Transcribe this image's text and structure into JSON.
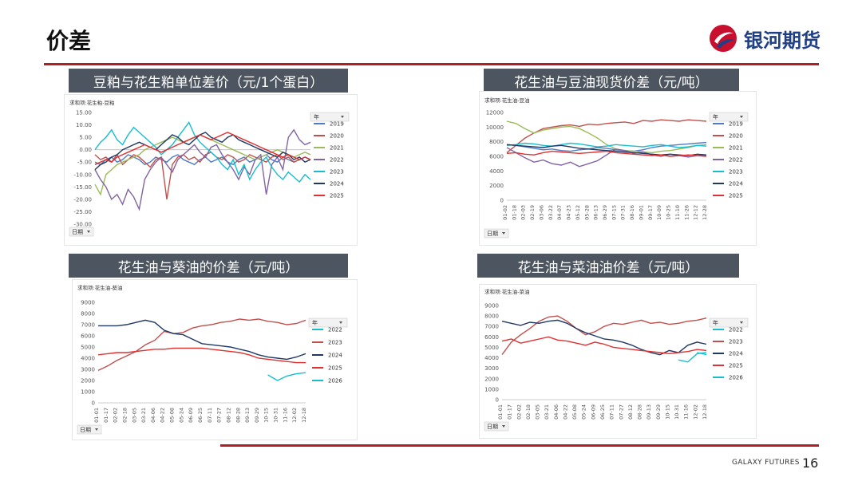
{
  "page": {
    "title": "价差",
    "brand_name": "银河期货",
    "footer_brand": "GALAXY FUTURES",
    "page_number": "16",
    "colors": {
      "accent": "#b01f24",
      "title_bar": "#4d5561",
      "brand_blue": "#1f3f86"
    }
  },
  "chart_data": [
    {
      "id": "c1",
      "type": "line",
      "panel_title": "豆粕与花生粕单位差价（元/1个蛋白）",
      "field_label": "求和项:花生粕-豆粕",
      "legend_title": "年",
      "axis_button": "日期",
      "y_ticks": [
        "15.00",
        "10.00",
        "5.00",
        "0.00",
        "-5.00",
        "-10.00",
        "-15.00",
        "-20.00",
        "-25.00",
        "-30.00"
      ],
      "ylim": [
        -30,
        15
      ],
      "x_ticks": [],
      "series": [
        {
          "name": "2019",
          "color": "#4e7ac7",
          "values": [
            -5,
            -6,
            -4,
            -3,
            -5,
            -4,
            -2,
            -3,
            -4,
            -6,
            -5,
            -3,
            -4,
            -5,
            -3,
            -2,
            -4,
            -5,
            -6,
            -4,
            -3,
            -5,
            -4,
            -3,
            -5,
            -6,
            -4,
            -3,
            -5,
            -4,
            -3,
            -2,
            -4,
            -5,
            -3,
            -4,
            -5,
            -4,
            -3,
            -4
          ]
        },
        {
          "name": "2020",
          "color": "#c0504d",
          "values": [
            -2,
            -4,
            -3,
            -5,
            -2,
            -6,
            -4,
            -2,
            -3,
            -5,
            -7,
            -4,
            -3,
            -20,
            -6,
            -3,
            -2,
            -4,
            -3,
            -5,
            -2,
            -1,
            -3,
            -4,
            -2,
            -3,
            -5,
            -4,
            -2,
            -3,
            -4,
            -5,
            -3,
            -2,
            -4,
            -3,
            -5,
            -4,
            -3,
            -4
          ]
        },
        {
          "name": "2021",
          "color": "#9bbb59",
          "values": [
            -14,
            -18,
            -10,
            -8,
            -6,
            -5,
            -4,
            -3,
            -2,
            0,
            1,
            2,
            3,
            4,
            5,
            4,
            3,
            4,
            5,
            6,
            5,
            4,
            3,
            2,
            1,
            0,
            -1,
            -2,
            -3,
            -4,
            -3,
            -2,
            -1,
            0,
            -1,
            -2,
            -3,
            -2,
            -1,
            -2
          ]
        },
        {
          "name": "2022",
          "color": "#8064a2",
          "values": [
            -8,
            -12,
            -15,
            -20,
            -18,
            -22,
            -16,
            -19,
            -24,
            -12,
            -8,
            -5,
            -3,
            -6,
            -9,
            -4,
            -2,
            0,
            2,
            -1,
            -3,
            1,
            2,
            -2,
            -5,
            -8,
            -12,
            -7,
            -10,
            -4,
            -2,
            -18,
            -6,
            -3,
            -8,
            5,
            8,
            4,
            2,
            3
          ]
        },
        {
          "name": "2023",
          "color": "#17becf",
          "values": [
            0,
            3,
            5,
            8,
            4,
            2,
            6,
            9,
            7,
            5,
            3,
            1,
            -2,
            0,
            2,
            5,
            8,
            11,
            6,
            3,
            1,
            -1,
            -3,
            -6,
            -8,
            -4,
            -10,
            -6,
            -12,
            -8,
            -5,
            -3,
            -7,
            -10,
            -12,
            -9,
            -11,
            -13,
            -10,
            -12
          ]
        },
        {
          "name": "2024",
          "color": "#1f3864",
          "values": [
            -8,
            -6,
            -5,
            -3,
            -2,
            0,
            1,
            2,
            3,
            2,
            1,
            0,
            2,
            4,
            6,
            5,
            3,
            2,
            4,
            6,
            7,
            5,
            4,
            3,
            5,
            6,
            4,
            3,
            2,
            1,
            0,
            -1,
            -2,
            -3,
            -1,
            -2,
            -4,
            -3,
            -5,
            -4
          ]
        },
        {
          "name": "2025",
          "color": "#e03030",
          "values": [
            -6,
            -5,
            -4,
            -5,
            -3,
            -2,
            -1,
            0,
            1,
            2,
            1,
            0,
            -1,
            0,
            1,
            2,
            3,
            4,
            5,
            6,
            5,
            4,
            5,
            6,
            7,
            6,
            5,
            4,
            3,
            2,
            1,
            0,
            -1,
            -2,
            -3,
            -2,
            -3,
            -4,
            -3,
            -4
          ]
        }
      ]
    },
    {
      "id": "c2",
      "type": "line",
      "panel_title": "花生油与豆油现货价差（元/吨）",
      "field_label": "求和项:花生油-豆油",
      "legend_title": "年",
      "axis_button": "日期",
      "y_ticks": [
        "12000",
        "10000",
        "8000",
        "6000",
        "4000",
        "2000",
        "0"
      ],
      "ylim": [
        0,
        12000
      ],
      "x_ticks": [
        "01-02",
        "01-18",
        "02-03",
        "02-19",
        "03-06",
        "03-22",
        "04-07",
        "04-23",
        "05-12",
        "05-28",
        "06-13",
        "06-29",
        "07-15",
        "07-31",
        "08-16",
        "09-01",
        "09-17",
        "10-09",
        "10-25",
        "11-10",
        "11-26",
        "12-12",
        "12-28"
      ],
      "series": [
        {
          "name": "2019",
          "color": "#4e7ac7",
          "values": [
            7600,
            7500,
            7300,
            7100,
            6900,
            7000,
            6800,
            6700,
            6900,
            7000,
            7200,
            7100,
            6900,
            6800,
            6700,
            6900,
            7200,
            7400,
            7500,
            7600,
            7700,
            7800,
            7900
          ]
        },
        {
          "name": "2020",
          "color": "#c0504d",
          "values": [
            6500,
            7500,
            8500,
            9200,
            9800,
            10000,
            10200,
            10300,
            10100,
            10400,
            10300,
            10500,
            10600,
            10700,
            10500,
            10900,
            10800,
            11000,
            10900,
            10800,
            11000,
            10900,
            10800
          ]
        },
        {
          "name": "2021",
          "color": "#9bbb59",
          "values": [
            10800,
            10500,
            9800,
            9200,
            9600,
            9800,
            10000,
            10100,
            9800,
            9200,
            8500,
            7600,
            7000,
            6800,
            6700,
            6600,
            6500,
            6700,
            6800,
            7000,
            7200,
            7500,
            7600
          ]
        },
        {
          "name": "2022",
          "color": "#8064a2",
          "values": [
            7200,
            6500,
            5800,
            5200,
            5500,
            5000,
            4800,
            5200,
            4600,
            5000,
            5400,
            6200,
            7000,
            6800,
            6400,
            6600,
            6200,
            6000,
            6300,
            6100,
            5900,
            6100,
            6200
          ]
        },
        {
          "name": "2023",
          "color": "#17becf",
          "values": [
            7500,
            7600,
            7800,
            7700,
            7500,
            7400,
            7600,
            7800,
            7700,
            7500,
            7300,
            7400,
            7600,
            7500,
            7400,
            7300,
            7500,
            7600,
            7400,
            7200,
            7300,
            7500,
            7400
          ]
        },
        {
          "name": "2024",
          "color": "#1f3864",
          "values": [
            7600,
            7500,
            7400,
            7300,
            7200,
            7400,
            7500,
            7300,
            7100,
            7000,
            6900,
            6800,
            6700,
            6600,
            6500,
            6400,
            6300,
            6200,
            6300,
            6200,
            6100,
            6300,
            6200
          ]
        },
        {
          "name": "2025",
          "color": "#e03030",
          "values": [
            6400,
            6500,
            6300,
            6200,
            6500,
            6700,
            6600,
            6500,
            6400,
            6500,
            6600,
            6700,
            6500,
            6400,
            6300,
            6200,
            6100,
            6200,
            6000,
            6100,
            6200,
            6100,
            6000
          ]
        }
      ]
    },
    {
      "id": "c3",
      "type": "line",
      "panel_title": "花生油与葵油的价差（元/吨）",
      "field_label": "求和项:花生油-葵油",
      "legend_title": "年",
      "axis_button": "日期",
      "y_ticks": [
        "9000",
        "8000",
        "7000",
        "6000",
        "5000",
        "4000",
        "3000",
        "2000",
        "1000",
        "0"
      ],
      "ylim": [
        0,
        9000
      ],
      "x_ticks": [
        "01-01",
        "01-17",
        "02-02",
        "02-18",
        "03-05",
        "03-21",
        "04-06",
        "04-22",
        "05-08",
        "05-24",
        "06-09",
        "06-25",
        "07-11",
        "07-27",
        "08-12",
        "08-28",
        "09-13",
        "09-29",
        "10-15",
        "10-31",
        "11-16",
        "12-02",
        "12-18"
      ],
      "series": [
        {
          "name": "2022",
          "color": "#17becf",
          "values": [
            3400,
            null,
            null,
            null,
            null,
            null,
            null,
            null,
            null,
            null,
            null,
            null,
            null,
            null,
            null,
            null,
            null,
            null,
            null,
            null,
            null,
            null,
            null
          ]
        },
        {
          "name": "2023",
          "color": "#c0504d",
          "values": [
            2900,
            3300,
            3800,
            4200,
            4600,
            5200,
            5600,
            6400,
            6200,
            6300,
            6700,
            6900,
            7000,
            7200,
            7300,
            7500,
            7400,
            7500,
            7300,
            7200,
            7000,
            7100,
            7400
          ]
        },
        {
          "name": "2024",
          "color": "#1f3864",
          "values": [
            6900,
            6900,
            6900,
            7000,
            7200,
            7400,
            7200,
            6500,
            6200,
            6100,
            5700,
            5300,
            5200,
            5100,
            5000,
            4800,
            4600,
            4300,
            4100,
            4000,
            3900,
            4100,
            4400
          ]
        },
        {
          "name": "2025",
          "color": "#e03030",
          "values": [
            4300,
            4400,
            4500,
            4500,
            4600,
            4700,
            4800,
            4800,
            4900,
            4900,
            4900,
            4900,
            4800,
            4700,
            4600,
            4500,
            4300,
            4000,
            3900,
            3800,
            3700,
            3600,
            3600
          ]
        },
        {
          "name": "2026",
          "color": "#17becf",
          "values": [
            null,
            null,
            null,
            null,
            null,
            null,
            null,
            null,
            null,
            null,
            null,
            null,
            null,
            null,
            null,
            null,
            null,
            null,
            2500,
            2000,
            2400,
            2600,
            2700
          ]
        }
      ]
    },
    {
      "id": "c4",
      "type": "line",
      "panel_title": "花生油与菜油油价差（元/吨）",
      "field_label": "求和项:花生油-菜油",
      "legend_title": "年",
      "axis_button": "日期",
      "y_ticks": [
        "9000",
        "8000",
        "7000",
        "6000",
        "5000",
        "4000",
        "3000",
        "2000",
        "1000",
        "0"
      ],
      "ylim": [
        0,
        9000
      ],
      "x_ticks": [
        "01-01",
        "01-17",
        "02-02",
        "02-18",
        "03-05",
        "03-21",
        "04-06",
        "04-22",
        "05-08",
        "05-24",
        "06-09",
        "06-25",
        "07-11",
        "07-27",
        "08-12",
        "08-28",
        "09-13",
        "09-29",
        "10-15",
        "10-31",
        "11-16",
        "12-02",
        "12-18"
      ],
      "series": [
        {
          "name": "2022",
          "color": "#17becf",
          "values": [
            4500,
            null,
            null,
            null,
            null,
            null,
            null,
            null,
            null,
            null,
            null,
            null,
            null,
            null,
            null,
            null,
            null,
            null,
            null,
            3800,
            3600,
            4400,
            4500
          ]
        },
        {
          "name": "2023",
          "color": "#c0504d",
          "values": [
            4300,
            5500,
            6200,
            6800,
            7500,
            7900,
            8000,
            7500,
            6800,
            6200,
            6500,
            7000,
            7300,
            7200,
            7400,
            7600,
            7300,
            7400,
            7200,
            7300,
            7500,
            7600,
            7800
          ]
        },
        {
          "name": "2024",
          "color": "#1f3864",
          "values": [
            7500,
            7300,
            7100,
            7400,
            7300,
            7500,
            7600,
            7300,
            6800,
            6400,
            6100,
            5800,
            5700,
            5500,
            5200,
            4800,
            4500,
            4300,
            4700,
            4500,
            5200,
            5500,
            5300
          ]
        },
        {
          "name": "2025",
          "color": "#e03030",
          "values": [
            5600,
            5800,
            5400,
            5600,
            5800,
            6000,
            5700,
            5600,
            5400,
            5200,
            5500,
            5300,
            5000,
            4900,
            4800,
            4700,
            4600,
            4500,
            4400,
            4500,
            4600,
            4800,
            4700
          ]
        },
        {
          "name": "2026",
          "color": "#17becf",
          "values": [
            null,
            null,
            null,
            null,
            null,
            null,
            null,
            null,
            null,
            null,
            null,
            null,
            null,
            null,
            null,
            null,
            null,
            null,
            null,
            null,
            null,
            4500,
            4300
          ]
        }
      ]
    }
  ]
}
